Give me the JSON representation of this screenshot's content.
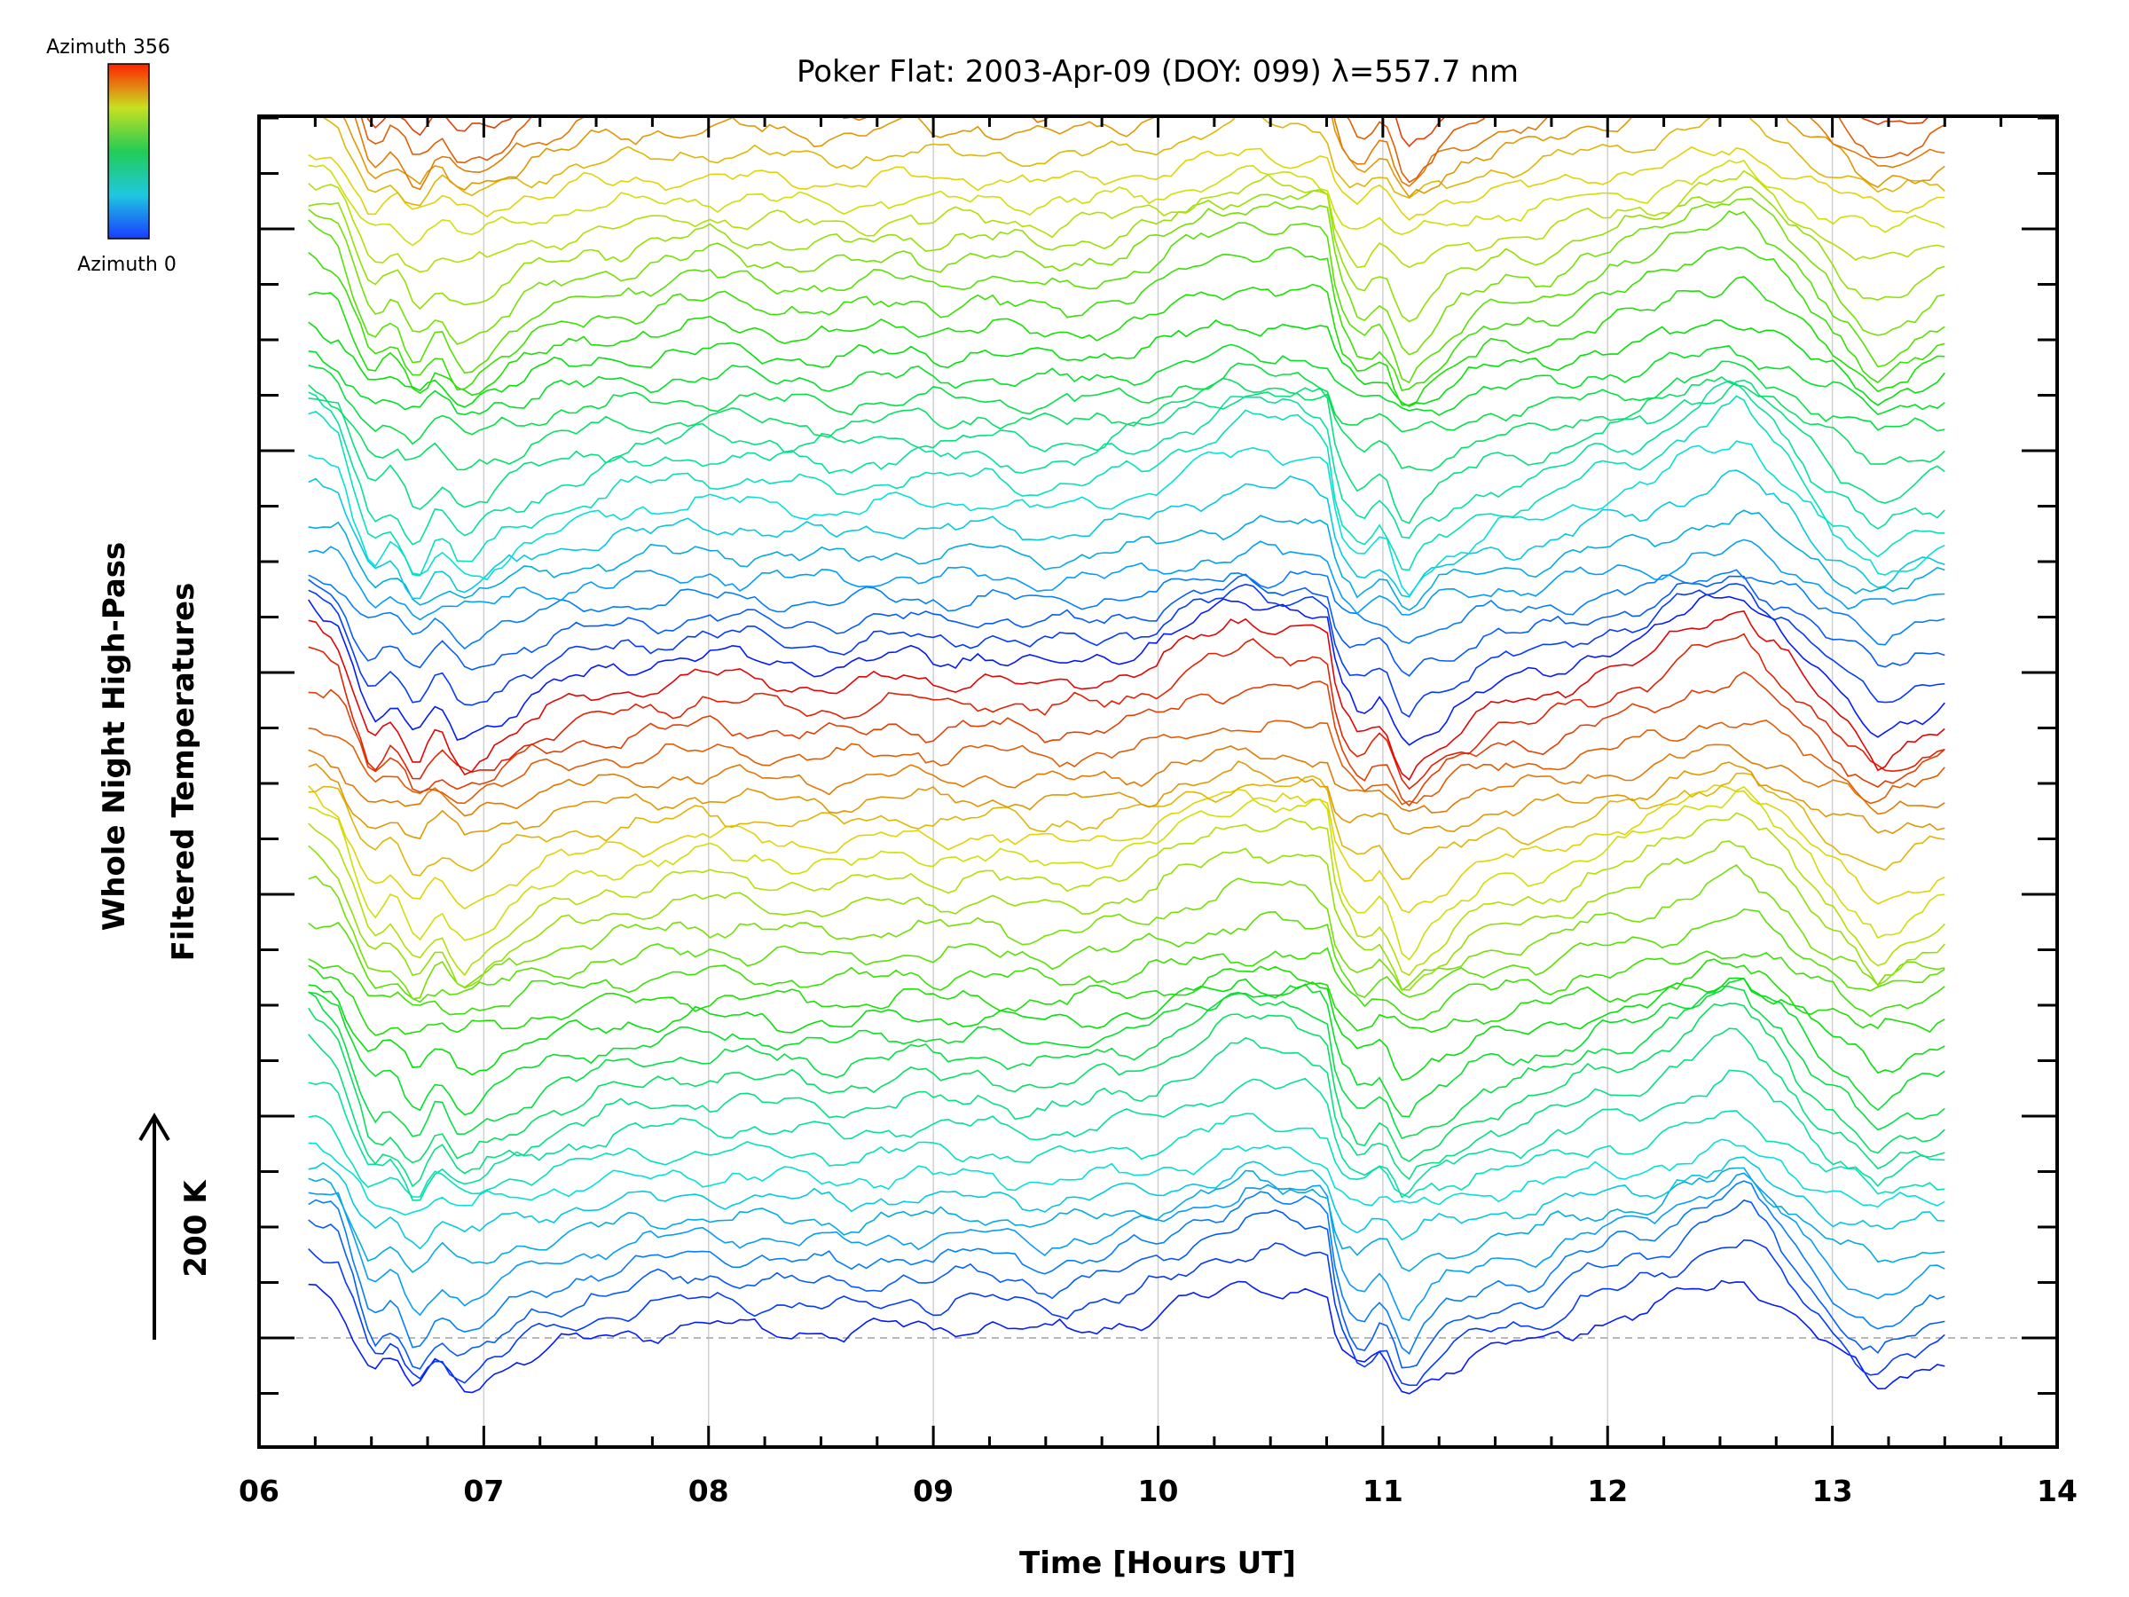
{
  "chart_data": {
    "type": "line",
    "title": "Poker Flat: 2003-Apr-09 (DOY: 099) λ=557.7 nm",
    "xlabel": "Time [Hours UT]",
    "ylabel_lines": [
      "Whole Night High-Pass",
      "Filtered Temperatures"
    ],
    "scale_label": "200 K",
    "colorbar": {
      "top_label": "Azimuth 356",
      "bottom_label": "Azimuth 0"
    },
    "x_ticks": [
      "06",
      "07",
      "08",
      "09",
      "10",
      "11",
      "12",
      "13",
      "14"
    ],
    "xlim": [
      6,
      14
    ],
    "x_range_data": [
      6.22,
      13.5
    ],
    "grid": "vertical dotted lines at each hour, dashed horizontal baseline",
    "legend": "colorbar top-left (blue = azimuth 0, red = azimuth 356)",
    "y_tick_labels": "none",
    "num_traces": 90,
    "series_offset_K": 20,
    "colors": {
      "azimuth_0": "#1a3cff",
      "azimuth_mid": "#22cc55",
      "azimuth_356": "#ff2200"
    },
    "common_profile_K": {
      "x": [
        6.22,
        6.35,
        6.5,
        6.6,
        6.7,
        6.8,
        6.9,
        7.0,
        7.2,
        7.5,
        7.8,
        8.0,
        8.3,
        8.6,
        8.9,
        9.0,
        9.2,
        9.5,
        9.8,
        10.0,
        10.2,
        10.4,
        10.6,
        10.75,
        10.8,
        10.9,
        11.0,
        11.1,
        11.2,
        11.3,
        11.5,
        11.7,
        11.9,
        12.0,
        12.2,
        12.4,
        12.6,
        12.75,
        12.9,
        13.0,
        13.2,
        13.3,
        13.5
      ],
      "y": [
        60,
        45,
        -40,
        -25,
        -60,
        -30,
        -55,
        -45,
        -20,
        0,
        10,
        15,
        10,
        5,
        15,
        10,
        15,
        5,
        15,
        25,
        45,
        60,
        55,
        50,
        -10,
        -40,
        -20,
        -65,
        -45,
        -30,
        -10,
        -5,
        15,
        20,
        30,
        55,
        70,
        40,
        5,
        -15,
        -50,
        -40,
        -25
      ]
    }
  }
}
